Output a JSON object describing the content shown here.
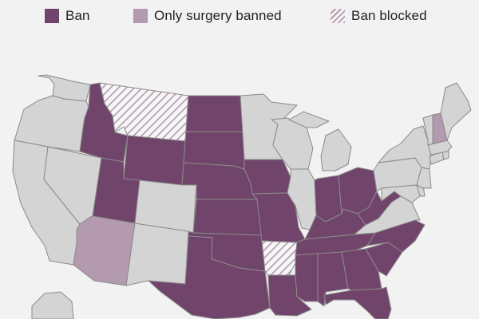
{
  "legend": {
    "items": [
      {
        "key": "ban",
        "label": "Ban",
        "color": "#71456b"
      },
      {
        "key": "surgery",
        "label": "Only surgery banned",
        "color": "#b39aae"
      },
      {
        "key": "blocked",
        "label": "Ban blocked",
        "pattern": "diagonal-hatch",
        "color": "#b39aae"
      }
    ]
  },
  "colors": {
    "ban": "#71456b",
    "surgery": "#b39aae",
    "none": "#d4d4d4",
    "border": "#8a8a8a",
    "background": "#f2f2f2"
  },
  "states": {
    "ban": [
      "Idaho",
      "North Dakota",
      "South Dakota",
      "Wyoming",
      "Nebraska",
      "Utah",
      "Kansas",
      "Oklahoma",
      "Texas",
      "Iowa",
      "Missouri",
      "Louisiana",
      "Indiana",
      "Ohio",
      "Kentucky",
      "Tennessee",
      "West Virginia",
      "Mississippi",
      "Alabama",
      "Georgia",
      "North Carolina",
      "South Carolina",
      "Florida"
    ],
    "only_surgery_banned": [
      "Arizona",
      "New Hampshire"
    ],
    "ban_blocked": [
      "Montana",
      "Arkansas"
    ],
    "no_ban": [
      "Washington",
      "Oregon",
      "California",
      "Nevada",
      "Colorado",
      "New Mexico",
      "Minnesota",
      "Wisconsin",
      "Illinois",
      "Michigan",
      "Pennsylvania",
      "New York",
      "Virginia",
      "Maryland",
      "New Jersey",
      "Delaware",
      "Connecticut",
      "Rhode Island",
      "Massachusetts",
      "Vermont",
      "Maine",
      "Alaska"
    ]
  }
}
